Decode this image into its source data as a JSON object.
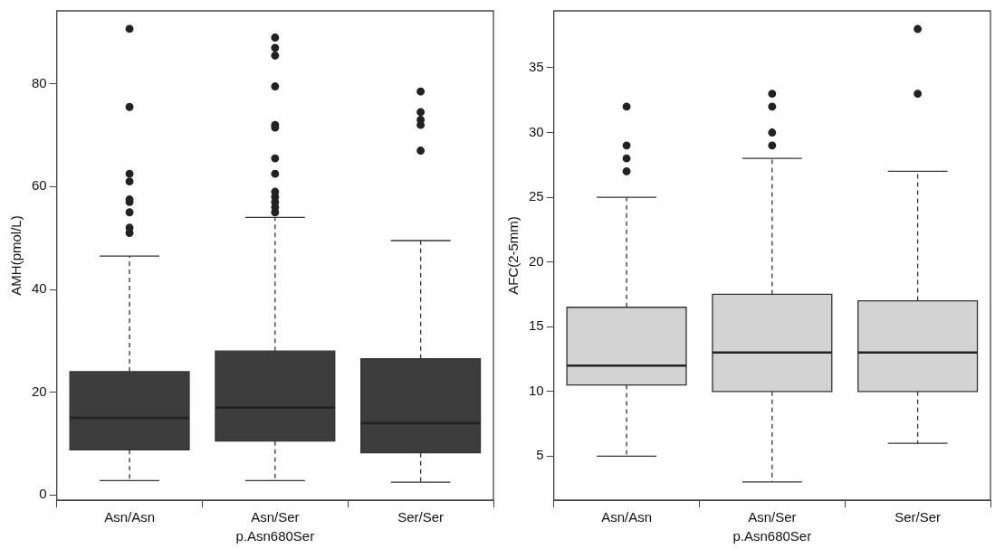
{
  "chart_data": [
    {
      "type": "box",
      "categories": [
        "Asn/Asn",
        "Asn/Ser",
        "Ser/Ser"
      ],
      "xlabel": "p.Asn680Ser",
      "ylabel": "AMH(pmol/L)",
      "color": "#3d3d3d",
      "ylim": [
        -1,
        94.2
      ],
      "yticks": [
        0,
        20,
        40,
        60,
        80
      ],
      "boxes": [
        {
          "low": 2.8,
          "q1": 8.8,
          "median": 15,
          "q3": 24,
          "high": 46.5,
          "outliers": [
            51,
            52,
            55,
            57,
            57.5,
            61,
            62.5,
            75.5,
            90.7
          ]
        },
        {
          "low": 2.8,
          "q1": 10.5,
          "median": 17,
          "q3": 28,
          "high": 54,
          "outliers": [
            55,
            56,
            57,
            58,
            59,
            62.5,
            65.5,
            71.5,
            72,
            79.5,
            85.5,
            87,
            89
          ]
        },
        {
          "low": 2.5,
          "q1": 8.2,
          "median": 14,
          "q3": 26.5,
          "high": 49.5,
          "outliers": [
            67,
            72,
            73,
            74.5,
            78.5
          ]
        }
      ]
    },
    {
      "type": "box",
      "categories": [
        "Asn/Asn",
        "Asn/Ser",
        "Ser/Ser"
      ],
      "xlabel": "p.Asn680Ser",
      "ylabel": "AFC(2-5mm)",
      "color": "#d3d3d3",
      "ylim": [
        1.6,
        39.4
      ],
      "yticks": [
        5,
        10,
        15,
        20,
        25,
        30,
        35
      ],
      "boxes": [
        {
          "low": 5,
          "q1": 10.5,
          "median": 12,
          "q3": 16.5,
          "high": 25,
          "outliers": [
            27,
            28,
            29,
            32
          ]
        },
        {
          "low": 3,
          "q1": 10,
          "median": 13,
          "q3": 17.5,
          "high": 28,
          "outliers": [
            29,
            30,
            32,
            33
          ]
        },
        {
          "low": 6,
          "q1": 10,
          "median": 13,
          "q3": 17,
          "high": 27,
          "outliers": [
            33,
            38
          ]
        }
      ]
    }
  ]
}
